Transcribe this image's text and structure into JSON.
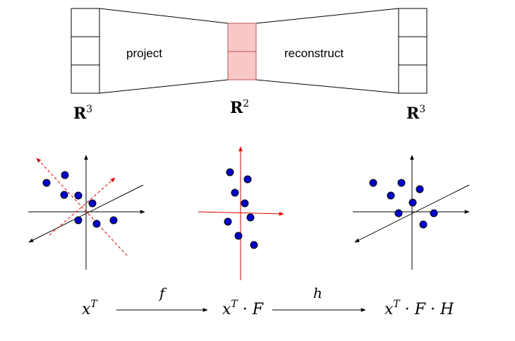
{
  "autoencoder": {
    "project_label": "project",
    "reconstruct_label": "reconstruct",
    "input_space": {
      "base": "R",
      "exp": "3"
    },
    "latent_space": {
      "base": "R",
      "exp": "2"
    },
    "output_space": {
      "base": "R",
      "exp": "3"
    },
    "colors": {
      "bottleneck_fill": "#f8c8c8",
      "bottleneck_stroke": "#c05050",
      "box_stroke": "#000000"
    }
  },
  "equations": {
    "input": {
      "var": "x",
      "sup": "T",
      "rest": ""
    },
    "mapping_f": "f",
    "latent": {
      "var": "x",
      "sup": "T",
      "rest": " · F"
    },
    "mapping_h": "h",
    "output": {
      "var": "x",
      "sup": "T",
      "rest": " · F · H"
    }
  },
  "colors": {
    "point": "#0000cc",
    "pca_axis": "#dd0000",
    "axis": "#000000"
  }
}
